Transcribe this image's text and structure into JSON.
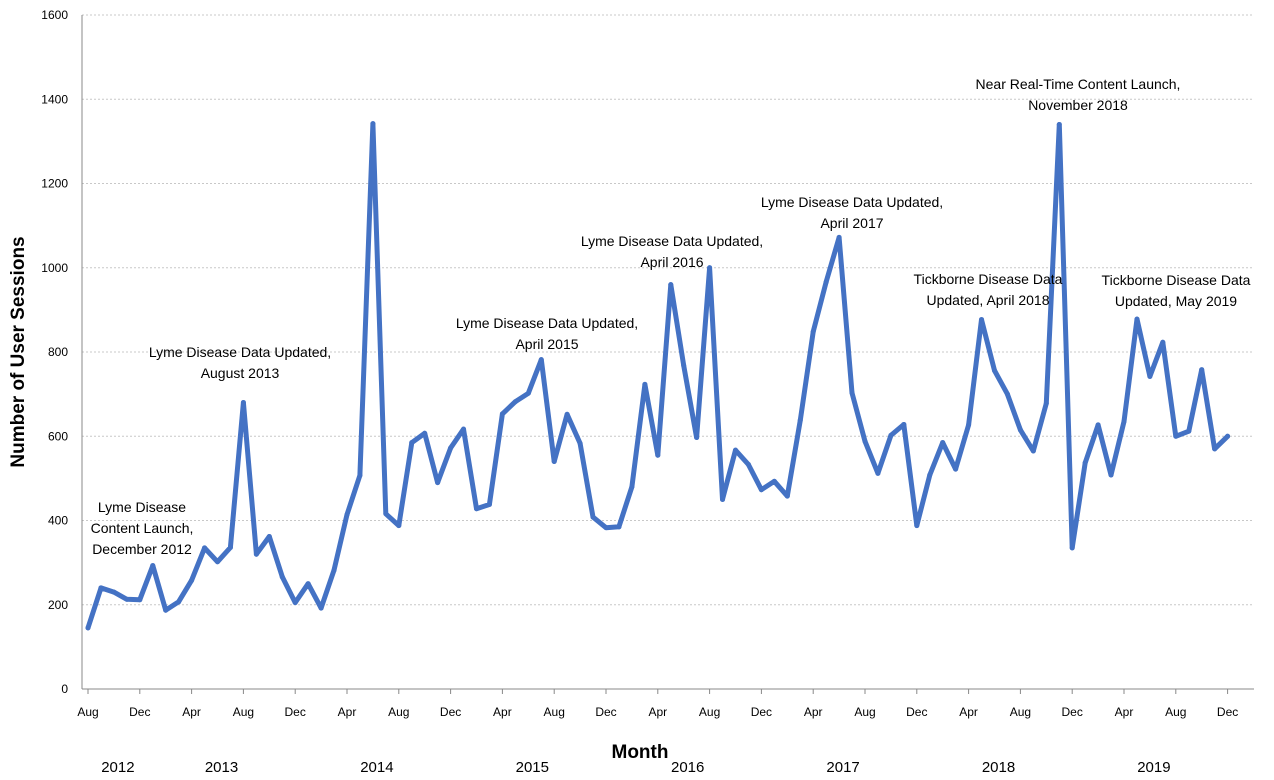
{
  "chart_data": {
    "type": "line",
    "xlabel": "Month",
    "ylabel": "Number of User Sessions",
    "ylim": [
      0,
      1600
    ],
    "yticks": [
      0,
      200,
      400,
      600,
      800,
      1000,
      1200,
      1400,
      1600
    ],
    "grid": true,
    "line_color": "#4472c4",
    "month_ticks": [
      "Aug",
      "Dec",
      "Apr",
      "Aug",
      "Dec",
      "Apr",
      "Aug",
      "Dec",
      "Apr",
      "Aug",
      "Dec",
      "Apr",
      "Aug",
      "Dec",
      "Apr",
      "Aug",
      "Dec",
      "Apr",
      "Aug",
      "Dec",
      "Apr",
      "Aug",
      "Dec"
    ],
    "years": [
      {
        "label": "2012",
        "month_index": 2
      },
      {
        "label": "2013",
        "month_index": 10
      },
      {
        "label": "2014",
        "month_index": 22
      },
      {
        "label": "2015",
        "month_index": 34
      },
      {
        "label": "2016",
        "month_index": 46
      },
      {
        "label": "2017",
        "month_index": 58
      },
      {
        "label": "2018",
        "month_index": 70
      },
      {
        "label": "2019",
        "month_index": 82
      }
    ],
    "x_start": "2012-08",
    "x_end": "2019-12",
    "values": [
      145,
      240,
      230,
      213,
      212,
      293,
      187,
      207,
      258,
      335,
      302,
      336,
      680,
      320,
      362,
      266,
      205,
      250,
      192,
      282,
      414,
      507,
      1342,
      416,
      388,
      585,
      607,
      490,
      572,
      617,
      428,
      438,
      653,
      682,
      702,
      782,
      540,
      652,
      583,
      408,
      383,
      385,
      480,
      723,
      555,
      960,
      768,
      597,
      1000,
      450,
      567,
      533,
      473,
      493,
      458,
      638,
      848,
      966,
      1072,
      703,
      588,
      512,
      602,
      628,
      388,
      508,
      585,
      522,
      627,
      877,
      756,
      700,
      615,
      565,
      678,
      1340,
      335,
      537,
      627,
      508,
      635,
      878,
      742,
      823,
      600,
      612,
      758,
      570,
      600
    ],
    "annotations": [
      {
        "lines": [
          "Lyme Disease",
          "Content Launch,",
          "December 2012"
        ]
      },
      {
        "lines": [
          "Lyme Disease Data Updated,",
          "August 2013"
        ]
      },
      {
        "lines": [
          "Lyme Disease Data Updated,",
          "April 2015"
        ]
      },
      {
        "lines": [
          "Lyme Disease Data Updated,",
          "April 2016"
        ]
      },
      {
        "lines": [
          "Lyme Disease Data Updated,",
          "April 2017"
        ]
      },
      {
        "lines": [
          "Tickborne Disease Data",
          "Updated, April 2018"
        ]
      },
      {
        "lines": [
          "Near Real-Time Content Launch,",
          "November 2018"
        ]
      },
      {
        "lines": [
          "Tickborne Disease Data",
          "Updated, May 2019"
        ]
      }
    ]
  }
}
